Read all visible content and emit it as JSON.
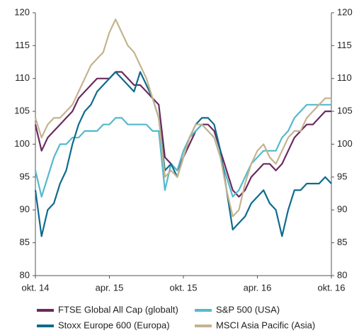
{
  "chart_data": {
    "type": "line",
    "categories": [
      "okt. 14",
      null,
      null,
      null,
      null,
      null,
      null,
      null,
      null,
      null,
      null,
      null,
      "apr. 15",
      null,
      null,
      null,
      null,
      null,
      null,
      null,
      null,
      null,
      null,
      null,
      "okt. 15",
      null,
      null,
      null,
      null,
      null,
      null,
      null,
      null,
      null,
      null,
      null,
      "apr. 16",
      null,
      null,
      null,
      null,
      null,
      null,
      null,
      null,
      null,
      null,
      null,
      "okt. 16"
    ],
    "series": [
      {
        "name": "FTSE Global All Cap (globalt)",
        "color": "#6b2a5e",
        "values": [
          103,
          99,
          101,
          102,
          103,
          104,
          105,
          107,
          108,
          109,
          110,
          110,
          110,
          111,
          111,
          110,
          109,
          109,
          108,
          107,
          106,
          98,
          97,
          96,
          98,
          100,
          102,
          103,
          103,
          102,
          99,
          96,
          93,
          92,
          93,
          95,
          96,
          97,
          97,
          96,
          97,
          99,
          101,
          102,
          103,
          103,
          104,
          105,
          105
        ]
      },
      {
        "name": "S&P 500 (USA)",
        "color": "#55b9cc",
        "values": [
          96,
          92,
          95,
          98,
          100,
          100,
          101,
          101,
          102,
          102,
          102,
          103,
          103,
          104,
          104,
          103,
          103,
          103,
          103,
          102,
          102,
          93,
          97,
          96,
          99,
          101,
          102,
          103,
          102,
          101,
          98,
          95,
          92,
          93,
          95,
          97,
          98,
          99,
          99,
          99,
          101,
          102,
          104,
          105,
          106,
          106,
          106,
          106,
          106
        ]
      },
      {
        "name": "Stoxx Europe 600 (Europa)",
        "color": "#0f6b8c",
        "values": [
          93,
          86,
          90,
          91,
          94,
          96,
          100,
          103,
          105,
          106,
          108,
          109,
          110,
          111,
          110,
          109,
          108,
          111,
          109,
          107,
          104,
          96,
          97,
          95,
          98,
          101,
          103,
          104,
          104,
          103,
          99,
          93,
          87,
          88,
          89,
          91,
          92,
          93,
          91,
          90,
          86,
          90,
          93,
          93,
          94,
          94,
          94,
          95,
          94
        ]
      },
      {
        "name": "MSCI Asia Pacific (Asia)",
        "color": "#c4b38f",
        "values": [
          104,
          101,
          103,
          104,
          104,
          105,
          106,
          108,
          110,
          112,
          113,
          114,
          117,
          119,
          117,
          115,
          114,
          112,
          110,
          107,
          104,
          95,
          96,
          95,
          98,
          101,
          103,
          103,
          102,
          101,
          98,
          93,
          89,
          90,
          94,
          97,
          99,
          100,
          98,
          97,
          99,
          101,
          102,
          102,
          104,
          105,
          106,
          107,
          107
        ]
      }
    ],
    "ylim": [
      80,
      120
    ],
    "yticks": [
      80,
      85,
      90,
      95,
      100,
      105,
      110,
      115,
      120
    ],
    "y2lim": [
      80,
      120
    ],
    "y2ticks": [
      80,
      85,
      90,
      95,
      100,
      105,
      110,
      115,
      120
    ],
    "legend": "bottom"
  }
}
